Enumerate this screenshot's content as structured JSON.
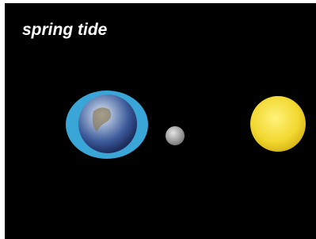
{
  "title": "spring tide"
}
